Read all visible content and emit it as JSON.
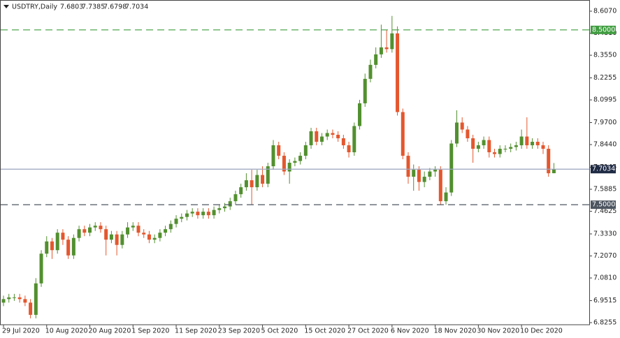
{
  "chart_data": {
    "type": "candlestick",
    "title": "USDTRY,Daily",
    "up_color": "#52902f",
    "down_color": "#e4572e",
    "x": [
      "29 Jul 2020",
      null,
      null,
      null,
      null,
      null,
      null,
      null,
      "10 Aug 2020",
      null,
      null,
      null,
      null,
      null,
      null,
      null,
      "20 Aug 2020",
      null,
      null,
      null,
      null,
      null,
      null,
      null,
      "1 Sep 2020",
      null,
      null,
      null,
      null,
      null,
      null,
      null,
      "11 Sep 2020",
      null,
      null,
      null,
      null,
      null,
      null,
      null,
      "23 Sep 2020",
      null,
      null,
      null,
      null,
      null,
      null,
      null,
      "5 Oct 2020",
      null,
      null,
      null,
      null,
      null,
      null,
      null,
      "15 Oct 2020",
      null,
      null,
      null,
      null,
      null,
      null,
      null,
      "27 Oct 2020",
      null,
      null,
      null,
      null,
      null,
      null,
      null,
      "6 Nov 2020",
      null,
      null,
      null,
      null,
      null,
      null,
      null,
      "18 Nov 2020",
      null,
      null,
      null,
      null,
      null,
      null,
      null,
      "30 Nov 2020",
      null,
      null,
      null,
      null,
      null,
      null,
      null,
      "10 Dec 2020",
      null,
      null,
      null,
      null,
      null,
      null
    ],
    "open": [
      6.94,
      6.96,
      6.97,
      6.97,
      6.96,
      6.94,
      6.87,
      7.05,
      7.22,
      7.29,
      7.24,
      7.34,
      7.3,
      7.21,
      7.31,
      7.36,
      7.34,
      7.37,
      7.38,
      7.36,
      7.3,
      7.33,
      7.27,
      7.33,
      7.37,
      7.38,
      7.34,
      7.33,
      7.3,
      7.31,
      7.34,
      7.36,
      7.39,
      7.42,
      7.43,
      7.45,
      7.46,
      7.44,
      7.46,
      7.44,
      7.47,
      7.48,
      7.49,
      7.52,
      7.56,
      7.6,
      7.64,
      7.6,
      7.67,
      7.62,
      7.72,
      7.84,
      7.78,
      7.69,
      7.74,
      7.75,
      7.78,
      7.84,
      7.92,
      7.86,
      7.89,
      7.91,
      7.9,
      7.88,
      7.84,
      7.8,
      7.95,
      8.08,
      8.22,
      8.3,
      8.36,
      8.4,
      8.39,
      8.48,
      8.03,
      7.78,
      7.66,
      7.7,
      7.63,
      7.66,
      7.69,
      7.7,
      7.52,
      7.57,
      7.85,
      7.97,
      7.93,
      7.88,
      7.82,
      7.84,
      7.87,
      7.8,
      7.79,
      7.82,
      7.82,
      7.83,
      7.84,
      7.89,
      7.84,
      7.86,
      7.84,
      7.82,
      7.6803
    ],
    "high": [
      6.98,
      6.99,
      6.99,
      6.99,
      6.98,
      6.96,
      7.08,
      7.24,
      7.32,
      7.31,
      7.36,
      7.36,
      7.32,
      7.33,
      7.38,
      7.38,
      7.39,
      7.4,
      7.4,
      7.38,
      7.35,
      7.35,
      7.35,
      7.4,
      7.4,
      7.4,
      7.36,
      7.35,
      7.33,
      7.36,
      7.38,
      7.41,
      7.44,
      7.45,
      7.47,
      7.48,
      7.48,
      7.48,
      7.48,
      7.49,
      7.5,
      7.51,
      7.54,
      7.58,
      7.62,
      7.68,
      7.7,
      7.7,
      7.72,
      7.74,
      7.87,
      7.86,
      7.8,
      7.76,
      7.77,
      7.8,
      7.86,
      7.94,
      7.94,
      7.91,
      7.93,
      7.93,
      7.92,
      7.9,
      7.86,
      7.97,
      8.1,
      8.25,
      8.33,
      8.4,
      8.53,
      8.5,
      8.58,
      8.52,
      8.05,
      7.8,
      7.73,
      7.72,
      7.69,
      7.71,
      7.72,
      7.72,
      7.6,
      7.87,
      8.04,
      8.0,
      7.95,
      7.9,
      7.86,
      7.89,
      7.89,
      7.82,
      7.84,
      7.84,
      7.85,
      7.86,
      7.93,
      8.0,
      7.88,
      7.88,
      7.86,
      7.84,
      7.7385
    ],
    "low": [
      6.92,
      6.94,
      6.95,
      6.94,
      6.92,
      6.85,
      6.85,
      7.03,
      7.2,
      7.19,
      7.22,
      7.27,
      7.19,
      7.19,
      7.29,
      7.32,
      7.32,
      7.35,
      7.34,
      7.21,
      7.28,
      7.21,
      7.25,
      7.31,
      7.35,
      7.32,
      7.31,
      7.28,
      7.28,
      7.29,
      7.32,
      7.34,
      7.37,
      7.4,
      7.41,
      7.43,
      7.42,
      7.42,
      7.42,
      7.42,
      7.45,
      7.46,
      7.47,
      7.5,
      7.54,
      7.58,
      7.5,
      7.58,
      7.6,
      7.6,
      7.7,
      7.76,
      7.67,
      7.62,
      7.72,
      7.73,
      7.76,
      7.82,
      7.84,
      7.84,
      7.87,
      7.88,
      7.86,
      7.82,
      7.77,
      7.78,
      7.93,
      8.06,
      8.2,
      8.28,
      8.34,
      8.37,
      8.37,
      8.01,
      7.76,
      7.62,
      7.58,
      7.58,
      7.6,
      7.64,
      7.66,
      7.5,
      7.5,
      7.55,
      7.83,
      7.91,
      7.86,
      7.74,
      7.8,
      7.82,
      7.77,
      7.77,
      7.77,
      7.8,
      7.8,
      7.81,
      7.82,
      7.82,
      7.82,
      7.82,
      7.79,
      7.66,
      7.6798
    ],
    "close": [
      6.96,
      6.97,
      6.97,
      6.96,
      6.94,
      6.87,
      7.05,
      7.22,
      7.29,
      7.24,
      7.34,
      7.3,
      7.21,
      7.31,
      7.36,
      7.34,
      7.37,
      7.38,
      7.36,
      7.3,
      7.33,
      7.27,
      7.33,
      7.37,
      7.38,
      7.34,
      7.33,
      7.3,
      7.31,
      7.34,
      7.36,
      7.39,
      7.42,
      7.43,
      7.45,
      7.46,
      7.44,
      7.46,
      7.44,
      7.47,
      7.48,
      7.49,
      7.52,
      7.56,
      7.6,
      7.64,
      7.6,
      7.67,
      7.62,
      7.72,
      7.84,
      7.78,
      7.69,
      7.74,
      7.75,
      7.78,
      7.84,
      7.92,
      7.86,
      7.89,
      7.91,
      7.9,
      7.88,
      7.84,
      7.8,
      7.95,
      8.08,
      8.22,
      8.3,
      8.36,
      8.4,
      8.39,
      8.48,
      8.03,
      7.78,
      7.66,
      7.7,
      7.63,
      7.66,
      7.69,
      7.7,
      7.52,
      7.57,
      7.85,
      7.97,
      7.93,
      7.88,
      7.82,
      7.84,
      7.87,
      7.8,
      7.79,
      7.82,
      7.82,
      7.83,
      7.84,
      7.89,
      7.84,
      7.86,
      7.84,
      7.82,
      7.68,
      7.7034
    ],
    "ylim": [
      6.8135,
      8.659
    ],
    "yticks": [
      {
        "value": 8.607,
        "label": "8.6070"
      },
      {
        "value": 8.481,
        "label": "8.4810"
      },
      {
        "value": 8.355,
        "label": "8.3550"
      },
      {
        "value": 8.2255,
        "label": "8.2255"
      },
      {
        "value": 8.0995,
        "label": "8.0995"
      },
      {
        "value": 7.97,
        "label": "7.9700"
      },
      {
        "value": 7.844,
        "label": "7.8440"
      },
      {
        "value": 7.7145,
        "label": "7.7145"
      },
      {
        "value": 7.5885,
        "label": "7.5885"
      },
      {
        "value": 7.4625,
        "label": "7.4625"
      },
      {
        "value": 7.333,
        "label": "7.3330"
      },
      {
        "value": 7.207,
        "label": "7.2070"
      },
      {
        "value": 7.081,
        "label": "7.0810"
      },
      {
        "value": 6.9515,
        "label": "6.9515"
      },
      {
        "value": 6.8255,
        "label": "6.8255"
      }
    ],
    "hlines": [
      {
        "value": 8.5,
        "label": "8.5000",
        "color": "#3f9d3f"
      },
      {
        "value": 7.5,
        "label": "7.5000",
        "color": "#4d5560"
      }
    ],
    "price_line_color": "#9aa3bd",
    "price_label_color": "#1f2a44"
  }
}
